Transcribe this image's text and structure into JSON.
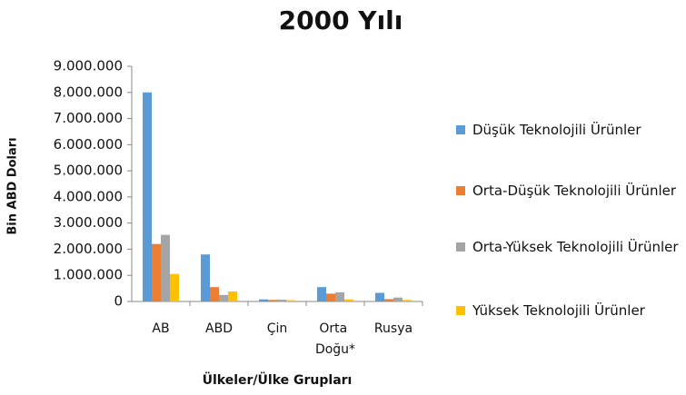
{
  "chart_data": {
    "type": "bar",
    "title": "2000 Yılı",
    "x_label": "Ülkeler/Ülke Grupları",
    "y_label": "Bin ABD Doları",
    "categories": [
      "AB",
      "ABD",
      "Çin",
      "Orta Doğu*",
      "Rusya"
    ],
    "series": [
      {
        "name": "Düşük Teknolojili Ürünler",
        "color": "#5b9bd5",
        "values": [
          8000000,
          1800000,
          80000,
          550000,
          330000
        ]
      },
      {
        "name": "Orta-Düşük Teknolojili Ürünler",
        "color": "#ed7d31",
        "values": [
          2200000,
          550000,
          60000,
          300000,
          90000
        ]
      },
      {
        "name": "Orta-Yüksek Teknolojili Ürünler",
        "color": "#a5a5a5",
        "values": [
          2550000,
          250000,
          70000,
          350000,
          150000
        ]
      },
      {
        "name": "Yüksek Teknolojili Ürünler",
        "color": "#ffc000",
        "values": [
          1050000,
          380000,
          50000,
          80000,
          60000
        ]
      }
    ],
    "ylim": [
      0,
      9000000
    ],
    "yticks": [
      0,
      {
        "value": 1000000,
        "label": "1.000.000"
      },
      {
        "value": 2000000,
        "label": "2.000.000"
      },
      {
        "value": 3000000,
        "label": "3.000.000"
      },
      {
        "value": 4000000,
        "label": "4.000.000"
      },
      {
        "value": 5000000,
        "label": "5.000.000"
      },
      {
        "value": 6000000,
        "label": "6.000.000"
      },
      {
        "value": 7000000,
        "label": "7.000.000"
      },
      {
        "value": 8000000,
        "label": "8.000.000"
      },
      {
        "value": 9000000,
        "label": "9.000.000"
      }
    ],
    "grid": false,
    "legend": "right"
  }
}
